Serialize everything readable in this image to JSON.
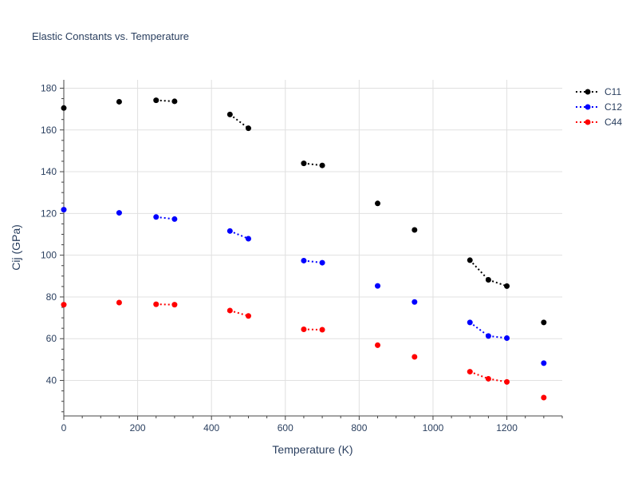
{
  "chart_data": {
    "type": "line",
    "title": "Elastic Constants vs. Temperature",
    "xlabel": "Temperature (K)",
    "ylabel": "Cij (GPa)",
    "xlim": [
      0,
      1350
    ],
    "ylim": [
      23,
      184
    ],
    "x_ticks": [
      0,
      200,
      400,
      600,
      800,
      1000,
      1200
    ],
    "y_ticks": [
      40,
      60,
      80,
      100,
      120,
      140,
      160,
      180
    ],
    "grid": true,
    "legend_position": "top-right",
    "line_style": "dotted",
    "series": [
      {
        "name": "C11",
        "color": "#000000",
        "points": [
          [
            0,
            170.5
          ],
          [
            150,
            173.5
          ],
          [
            250,
            174.2
          ],
          [
            300,
            173.7
          ],
          [
            450,
            167.4
          ],
          [
            500,
            160.8
          ],
          [
            650,
            144.0
          ],
          [
            700,
            143.0
          ],
          [
            850,
            124.8
          ],
          [
            950,
            112.1
          ],
          [
            1100,
            97.6
          ],
          [
            1150,
            88.2
          ],
          [
            1200,
            85.2
          ],
          [
            1300,
            67.8
          ]
        ],
        "connected_pairs": [
          [
            2,
            3
          ],
          [
            4,
            5
          ],
          [
            6,
            7
          ],
          [
            10,
            11
          ],
          [
            11,
            12
          ]
        ]
      },
      {
        "name": "C12",
        "color": "#0000ff",
        "points": [
          [
            0,
            121.8
          ],
          [
            150,
            120.3
          ],
          [
            250,
            118.3
          ],
          [
            300,
            117.3
          ],
          [
            450,
            111.6
          ],
          [
            500,
            107.9
          ],
          [
            650,
            97.4
          ],
          [
            700,
            96.4
          ],
          [
            850,
            85.3
          ],
          [
            950,
            77.6
          ],
          [
            1100,
            67.8
          ],
          [
            1150,
            61.3
          ],
          [
            1200,
            60.3
          ],
          [
            1300,
            48.3
          ]
        ],
        "connected_pairs": [
          [
            2,
            3
          ],
          [
            4,
            5
          ],
          [
            6,
            7
          ],
          [
            10,
            11
          ],
          [
            11,
            12
          ]
        ]
      },
      {
        "name": "C44",
        "color": "#ff0000",
        "points": [
          [
            0,
            76.3
          ],
          [
            150,
            77.3
          ],
          [
            250,
            76.5
          ],
          [
            300,
            76.3
          ],
          [
            450,
            73.5
          ],
          [
            500,
            70.9
          ],
          [
            650,
            64.5
          ],
          [
            700,
            64.3
          ],
          [
            850,
            56.9
          ],
          [
            950,
            51.3
          ],
          [
            1100,
            44.2
          ],
          [
            1150,
            40.8
          ],
          [
            1200,
            39.3
          ],
          [
            1300,
            31.8
          ]
        ],
        "connected_pairs": [
          [
            2,
            3
          ],
          [
            4,
            5
          ],
          [
            6,
            7
          ],
          [
            10,
            11
          ],
          [
            11,
            12
          ]
        ]
      }
    ]
  }
}
